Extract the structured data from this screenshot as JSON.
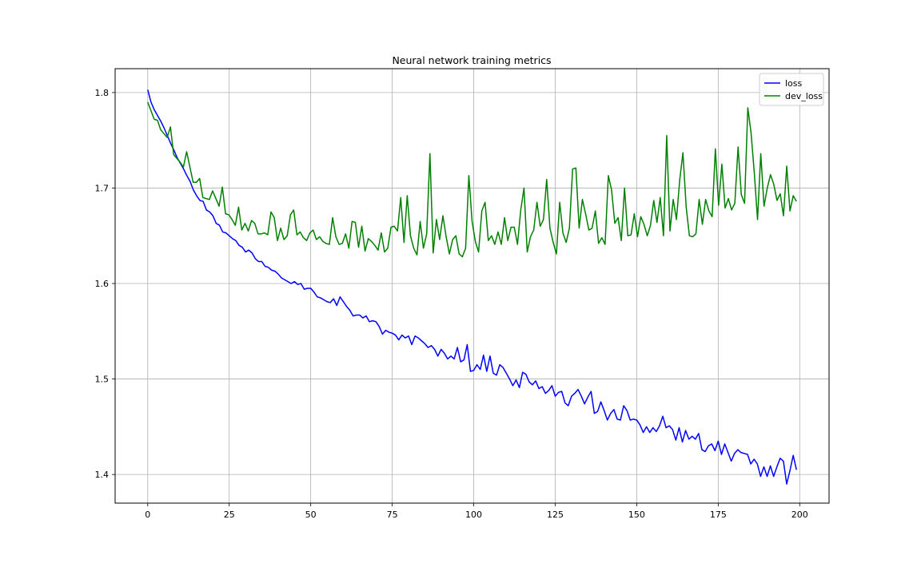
{
  "chart_data": {
    "type": "line",
    "title": "Neural network training metrics",
    "xlabel": "",
    "ylabel": "",
    "xlim": [
      -10,
      209
    ],
    "ylim": [
      1.37,
      1.825
    ],
    "x_ticks": [
      0,
      25,
      50,
      75,
      100,
      125,
      150,
      175,
      200
    ],
    "y_ticks": [
      1.4,
      1.5,
      1.6,
      1.7,
      1.8
    ],
    "x_tick_labels": [
      "0",
      "25",
      "50",
      "75",
      "100",
      "125",
      "150",
      "175",
      "200"
    ],
    "y_tick_labels": [
      "1.4",
      "1.5",
      "1.6",
      "1.7",
      "1.8"
    ],
    "grid": true,
    "legend_position": "top-right",
    "colors": {
      "loss": "#0000ff",
      "dev_loss": "#008000"
    },
    "x_range": [
      0,
      199
    ],
    "series": [
      {
        "name": "loss",
        "color": "#0000ff",
        "values": [
          1.803,
          1.79,
          1.782,
          1.776,
          1.77,
          1.763,
          1.755,
          1.747,
          1.74,
          1.732,
          1.726,
          1.72,
          1.713,
          1.707,
          1.698,
          1.692,
          1.687,
          1.686,
          1.677,
          1.675,
          1.671,
          1.663,
          1.661,
          1.654,
          1.653,
          1.65,
          1.647,
          1.645,
          1.64,
          1.638,
          1.633,
          1.635,
          1.632,
          1.626,
          1.623,
          1.623,
          1.618,
          1.617,
          1.614,
          1.613,
          1.61,
          1.606,
          1.604,
          1.602,
          1.6,
          1.602,
          1.599,
          1.6,
          1.594,
          1.595,
          1.595,
          1.591,
          1.586,
          1.585,
          1.583,
          1.581,
          1.58,
          1.584,
          1.577,
          1.586,
          1.581,
          1.576,
          1.572,
          1.566,
          1.567,
          1.567,
          1.564,
          1.566,
          1.56,
          1.561,
          1.56,
          1.555,
          1.547,
          1.551,
          1.549,
          1.548,
          1.546,
          1.541,
          1.546,
          1.543,
          1.545,
          1.536,
          1.545,
          1.543,
          1.54,
          1.537,
          1.533,
          1.535,
          1.531,
          1.524,
          1.531,
          1.527,
          1.521,
          1.524,
          1.521,
          1.533,
          1.518,
          1.52,
          1.536,
          1.508,
          1.509,
          1.515,
          1.51,
          1.525,
          1.508,
          1.524,
          1.506,
          1.504,
          1.515,
          1.512,
          1.506,
          1.5,
          1.493,
          1.499,
          1.491,
          1.507,
          1.505,
          1.497,
          1.494,
          1.498,
          1.49,
          1.492,
          1.485,
          1.488,
          1.493,
          1.482,
          1.486,
          1.487,
          1.475,
          1.472,
          1.482,
          1.485,
          1.489,
          1.482,
          1.474,
          1.481,
          1.487,
          1.464,
          1.466,
          1.476,
          1.467,
          1.457,
          1.464,
          1.468,
          1.458,
          1.457,
          1.472,
          1.467,
          1.457,
          1.458,
          1.457,
          1.452,
          1.444,
          1.45,
          1.444,
          1.449,
          1.445,
          1.451,
          1.461,
          1.449,
          1.451,
          1.447,
          1.436,
          1.449,
          1.434,
          1.446,
          1.437,
          1.44,
          1.437,
          1.443,
          1.426,
          1.424,
          1.43,
          1.432,
          1.425,
          1.435,
          1.421,
          1.432,
          1.423,
          1.414,
          1.422,
          1.426,
          1.423,
          1.422,
          1.421,
          1.411,
          1.416,
          1.411,
          1.398,
          1.408,
          1.398,
          1.409,
          1.398,
          1.408,
          1.417,
          1.414,
          1.39,
          1.404,
          1.42,
          1.405
        ]
      },
      {
        "name": "dev_loss",
        "color": "#008000",
        "values": [
          1.79,
          1.781,
          1.772,
          1.771,
          1.761,
          1.757,
          1.753,
          1.764,
          1.735,
          1.731,
          1.727,
          1.722,
          1.738,
          1.722,
          1.706,
          1.706,
          1.71,
          1.69,
          1.689,
          1.688,
          1.697,
          1.689,
          1.681,
          1.701,
          1.673,
          1.672,
          1.667,
          1.661,
          1.68,
          1.656,
          1.663,
          1.655,
          1.666,
          1.663,
          1.652,
          1.652,
          1.653,
          1.651,
          1.675,
          1.669,
          1.645,
          1.658,
          1.646,
          1.65,
          1.672,
          1.677,
          1.651,
          1.654,
          1.648,
          1.645,
          1.653,
          1.656,
          1.646,
          1.649,
          1.644,
          1.642,
          1.641,
          1.669,
          1.649,
          1.641,
          1.642,
          1.652,
          1.637,
          1.665,
          1.664,
          1.638,
          1.66,
          1.634,
          1.647,
          1.644,
          1.64,
          1.635,
          1.653,
          1.633,
          1.637,
          1.659,
          1.66,
          1.655,
          1.69,
          1.643,
          1.692,
          1.65,
          1.637,
          1.63,
          1.665,
          1.637,
          1.652,
          1.736,
          1.632,
          1.667,
          1.646,
          1.671,
          1.649,
          1.631,
          1.646,
          1.65,
          1.631,
          1.628,
          1.637,
          1.713,
          1.665,
          1.644,
          1.633,
          1.676,
          1.685,
          1.645,
          1.65,
          1.641,
          1.654,
          1.641,
          1.669,
          1.645,
          1.659,
          1.659,
          1.641,
          1.677,
          1.7,
          1.633,
          1.649,
          1.656,
          1.685,
          1.66,
          1.667,
          1.709,
          1.658,
          1.643,
          1.631,
          1.685,
          1.653,
          1.643,
          1.658,
          1.72,
          1.721,
          1.658,
          1.688,
          1.673,
          1.656,
          1.658,
          1.676,
          1.642,
          1.648,
          1.641,
          1.713,
          1.698,
          1.663,
          1.669,
          1.645,
          1.7,
          1.65,
          1.651,
          1.673,
          1.649,
          1.67,
          1.662,
          1.65,
          1.661,
          1.687,
          1.664,
          1.69,
          1.65,
          1.755,
          1.655,
          1.688,
          1.667,
          1.708,
          1.737,
          1.68,
          1.65,
          1.649,
          1.652,
          1.688,
          1.662,
          1.688,
          1.676,
          1.67,
          1.741,
          1.682,
          1.725,
          1.679,
          1.689,
          1.677,
          1.684,
          1.743,
          1.693,
          1.684,
          1.784,
          1.758,
          1.716,
          1.667,
          1.736,
          1.681,
          1.7,
          1.714,
          1.704,
          1.687,
          1.694,
          1.671,
          1.723,
          1.676,
          1.692,
          1.686
        ]
      }
    ]
  }
}
